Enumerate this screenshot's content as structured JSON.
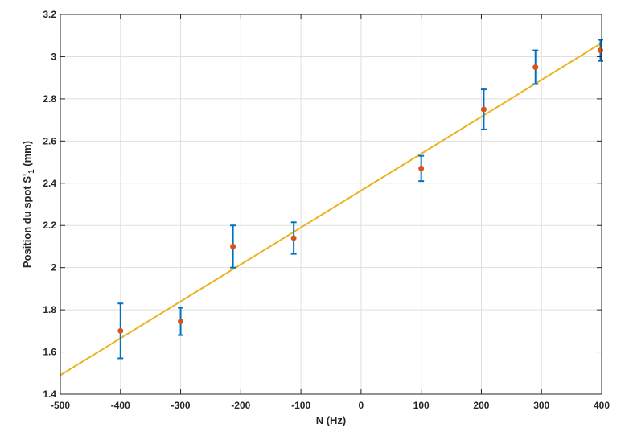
{
  "chart_data": {
    "type": "scatter",
    "xlabel": "N (Hz)",
    "ylabel_main": "Position du spot S'",
    "ylabel_sub": "1",
    "ylabel_unit": " (mm)",
    "xlim": [
      -500,
      400
    ],
    "ylim": [
      1.4,
      3.2
    ],
    "xticks": [
      -500,
      -400,
      -300,
      -200,
      -100,
      0,
      100,
      200,
      300,
      400
    ],
    "xtick_labels": [
      "-500",
      "-400",
      "-300",
      "-200",
      "-100",
      "0",
      "100",
      "200",
      "300",
      "400"
    ],
    "yticks": [
      1.4,
      1.6,
      1.8,
      2.0,
      2.2,
      2.4,
      2.6,
      2.8,
      3.0,
      3.2
    ],
    "ytick_labels": [
      "1.4",
      "1.6",
      "1.8",
      "2",
      "2.2",
      "2.4",
      "2.6",
      "2.8",
      "3",
      "3.2"
    ],
    "grid": true,
    "points": [
      {
        "x": -400,
        "y": 1.7,
        "err": 0.13
      },
      {
        "x": -300,
        "y": 1.745,
        "err": 0.065
      },
      {
        "x": -213,
        "y": 2.1,
        "err": 0.1
      },
      {
        "x": -112,
        "y": 2.14,
        "err": 0.075
      },
      {
        "x": 100,
        "y": 2.47,
        "err": 0.06
      },
      {
        "x": 204,
        "y": 2.75,
        "err": 0.095
      },
      {
        "x": 290,
        "y": 2.95,
        "err": 0.08
      },
      {
        "x": 398,
        "y": 3.03,
        "err": 0.05
      }
    ],
    "fit_line": {
      "x": [
        -500,
        400
      ],
      "y": [
        1.49,
        3.065
      ]
    },
    "colors": {
      "point": "#d95319",
      "errorbar": "#0072bd",
      "fit": "#edb120",
      "grid": "#dfdfdf",
      "axis": "#262626"
    }
  }
}
